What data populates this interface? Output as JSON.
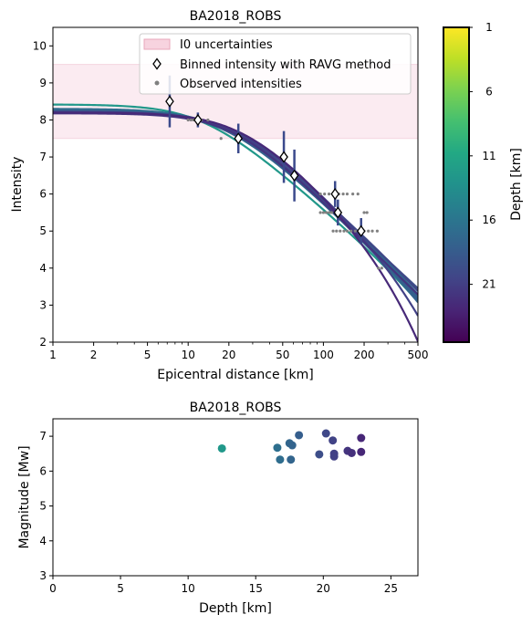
{
  "chart_data": [
    {
      "type": "line",
      "title": "BA2018_ROBS",
      "xlabel": "Epicentral distance [km]",
      "ylabel": "Intensity",
      "xscale": "log",
      "xlim": [
        1,
        500
      ],
      "ylim": [
        2,
        10.5
      ],
      "xticks": [
        1,
        2,
        5,
        10,
        20,
        50,
        100,
        200,
        500
      ],
      "xtick_labels": [
        "1",
        "2",
        "5",
        "10",
        "20",
        "50",
        "100",
        "200",
        "500"
      ],
      "yticks": [
        2,
        3,
        4,
        5,
        6,
        7,
        8,
        9,
        10
      ],
      "ytick_labels": [
        "2",
        "3",
        "4",
        "5",
        "6",
        "7",
        "8",
        "9",
        "10"
      ],
      "legend": {
        "placement": "upper-right",
        "entries": [
          "I0 uncertainties",
          "Binned intensity with RAVG method",
          "Observed intensities"
        ]
      },
      "i0_band": [
        7.5,
        9.5
      ],
      "binned": [
        {
          "x": 7.3,
          "y": 8.5,
          "err": 0.7
        },
        {
          "x": 11.8,
          "y": 8.0,
          "err": 0.2
        },
        {
          "x": 23.5,
          "y": 7.5,
          "err": 0.4
        },
        {
          "x": 51,
          "y": 7.0,
          "err": 0.7
        },
        {
          "x": 61,
          "y": 6.5,
          "err": 0.7
        },
        {
          "x": 122,
          "y": 6.0,
          "err": 0.35
        },
        {
          "x": 128,
          "y": 5.5,
          "err": 0.35
        },
        {
          "x": 190,
          "y": 5.0,
          "err": 0.35
        }
      ],
      "observed": [
        {
          "x": 10,
          "y": 8
        },
        {
          "x": 10.5,
          "y": 8
        },
        {
          "x": 11,
          "y": 8
        },
        {
          "x": 12.5,
          "y": 8
        },
        {
          "x": 14,
          "y": 8
        },
        {
          "x": 17.5,
          "y": 7.5
        },
        {
          "x": 95,
          "y": 6
        },
        {
          "x": 102,
          "y": 6
        },
        {
          "x": 110,
          "y": 6
        },
        {
          "x": 130,
          "y": 6
        },
        {
          "x": 140,
          "y": 6
        },
        {
          "x": 150,
          "y": 6
        },
        {
          "x": 165,
          "y": 6
        },
        {
          "x": 180,
          "y": 6
        },
        {
          "x": 95,
          "y": 5.5
        },
        {
          "x": 100,
          "y": 5.5
        },
        {
          "x": 105,
          "y": 5.5
        },
        {
          "x": 110,
          "y": 5.5
        },
        {
          "x": 115,
          "y": 5.5
        },
        {
          "x": 200,
          "y": 5.5
        },
        {
          "x": 210,
          "y": 5.5
        },
        {
          "x": 118,
          "y": 5
        },
        {
          "x": 125,
          "y": 5
        },
        {
          "x": 133,
          "y": 5
        },
        {
          "x": 142,
          "y": 5
        },
        {
          "x": 150,
          "y": 5
        },
        {
          "x": 160,
          "y": 5
        },
        {
          "x": 172,
          "y": 5
        },
        {
          "x": 186,
          "y": 5
        },
        {
          "x": 200,
          "y": 5
        },
        {
          "x": 215,
          "y": 5
        },
        {
          "x": 230,
          "y": 5
        },
        {
          "x": 250,
          "y": 5
        },
        {
          "x": 255,
          "y": 4
        },
        {
          "x": 270,
          "y": 4
        }
      ],
      "model_curves": [
        {
          "depth": 12.5,
          "I0": 8.42,
          "beta": 3.05,
          "gamma": 0.0009
        },
        {
          "depth": 16.7,
          "I0": 8.3,
          "beta": 3.1,
          "gamma": 0.0009
        },
        {
          "depth": 17.1,
          "I0": 8.28,
          "beta": 3.1,
          "gamma": 0.001
        },
        {
          "depth": 17.5,
          "I0": 8.26,
          "beta": 3.15,
          "gamma": 0.001
        },
        {
          "depth": 17.7,
          "I0": 8.25,
          "beta": 3.2,
          "gamma": 0.0011
        },
        {
          "depth": 18.2,
          "I0": 8.24,
          "beta": 3.2,
          "gamma": 0.001
        },
        {
          "depth": 19.7,
          "I0": 8.23,
          "beta": 3.4,
          "gamma": 0.0
        },
        {
          "depth": 20.2,
          "I0": 8.22,
          "beta": 3.3,
          "gamma": 0.0005
        },
        {
          "depth": 20.8,
          "I0": 8.2,
          "beta": 3.0,
          "gamma": 0.0028
        },
        {
          "depth": 21.8,
          "I0": 8.18,
          "beta": 3.6,
          "gamma": 0.0
        },
        {
          "depth": 22.7,
          "I0": 8.2,
          "beta": 3.0,
          "gamma": 0.0045
        }
      ],
      "colorbar": {
        "label": "Depth [km]",
        "range": [
          1,
          25.5
        ],
        "ticks": [
          1,
          6,
          11,
          16,
          21
        ],
        "tick_labels": [
          "1",
          "6",
          "11",
          "16",
          "21"
        ],
        "colormap": "viridis",
        "direction": "reversed"
      }
    },
    {
      "type": "scatter",
      "title": "BA2018_ROBS",
      "xlabel": "Depth [km]",
      "ylabel": "Magnitude [Mw]",
      "xlim": [
        0,
        27
      ],
      "ylim": [
        3,
        7.5
      ],
      "xticks": [
        0,
        5,
        10,
        15,
        20,
        25
      ],
      "xtick_labels": [
        "0",
        "5",
        "10",
        "15",
        "20",
        "25"
      ],
      "yticks": [
        3,
        4,
        5,
        6,
        7
      ],
      "ytick_labels": [
        "3",
        "4",
        "5",
        "6",
        "7"
      ],
      "points": [
        {
          "x": 12.5,
          "y": 6.65
        },
        {
          "x": 16.6,
          "y": 6.67
        },
        {
          "x": 16.8,
          "y": 6.33
        },
        {
          "x": 17.5,
          "y": 6.8
        },
        {
          "x": 17.7,
          "y": 6.74
        },
        {
          "x": 17.6,
          "y": 6.33
        },
        {
          "x": 18.2,
          "y": 7.03
        },
        {
          "x": 19.7,
          "y": 6.48
        },
        {
          "x": 20.2,
          "y": 7.08
        },
        {
          "x": 20.7,
          "y": 6.88
        },
        {
          "x": 20.8,
          "y": 6.5
        },
        {
          "x": 20.8,
          "y": 6.42
        },
        {
          "x": 21.8,
          "y": 6.58
        },
        {
          "x": 22.1,
          "y": 6.52
        },
        {
          "x": 22.8,
          "y": 6.95
        },
        {
          "x": 22.8,
          "y": 6.55
        }
      ]
    }
  ]
}
